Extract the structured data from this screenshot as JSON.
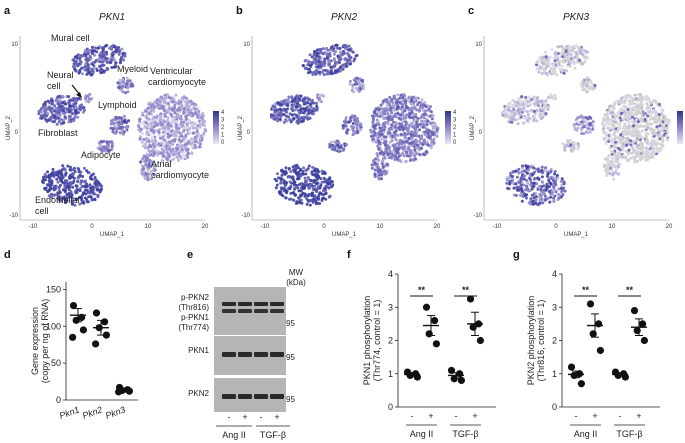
{
  "panels": {
    "a": {
      "label": "a",
      "title": "PKN1",
      "xlabel": "UMAP_1",
      "ylabel": "UMAP_2",
      "xticks": [
        "-10",
        "0",
        "10",
        "20"
      ],
      "yticks": [
        "10",
        "0",
        "-10"
      ],
      "legend_ticks": [
        "4",
        "3",
        "2",
        "1",
        "0"
      ],
      "annotations": {
        "mural": "Mural cell",
        "neural1": "Neural",
        "neural2": "cell",
        "myeloid": "Myeloid",
        "ventricular1": "Ventricular",
        "ventricular2": "cardiomyocyte",
        "lymphoid": "Lymphoid",
        "fibroblast": "Fibroblast",
        "adipocyte": "Adipocyte",
        "atrial1": "Atrial",
        "atrial2": "cardiomyocyte",
        "endothelial1": "Endothelial",
        "endothelial2": "cell"
      }
    },
    "b": {
      "label": "b",
      "title": "PKN2",
      "xlabel": "UMAP_1",
      "ylabel": "UMAP_2",
      "xticks": [
        "-10",
        "0",
        "10",
        "20"
      ],
      "yticks": [
        "10",
        "0",
        "-10"
      ],
      "legend_ticks": [
        "4",
        "3",
        "2",
        "1",
        "0"
      ]
    },
    "c": {
      "label": "c",
      "title": "PKN3",
      "xlabel": "UMAP_1",
      "ylabel": "UMAP_2",
      "xticks": [
        "-10",
        "0",
        "10",
        "20"
      ],
      "yticks": [
        "10",
        "0",
        "-10"
      ],
      "legend_ticks": [
        "4",
        "3",
        "2",
        "1",
        "0"
      ]
    },
    "d": {
      "label": "d"
    },
    "e": {
      "label": "e",
      "mw_label1": "MW",
      "mw_label2": "(kDa)",
      "rows": [
        {
          "name": "p-PKN2",
          "sub": "(Thr816)"
        },
        {
          "name": "p-PKN1",
          "sub": "(Thr774)"
        },
        {
          "name": "PKN1"
        },
        {
          "name": "PKN2"
        }
      ],
      "mw": [
        "95",
        "95",
        "95"
      ],
      "lanes": [
        "-",
        "+",
        "-",
        "+"
      ],
      "groups": [
        "Ang II",
        "TGF-β"
      ]
    },
    "f": {
      "label": "f",
      "sig": [
        "**",
        "**"
      ]
    },
    "g": {
      "label": "g",
      "sig": [
        "**",
        "**"
      ]
    }
  },
  "chart_data": [
    {
      "type": "scatter",
      "id": "d",
      "title": "",
      "ylabel": "Gene expression",
      "ylabel2": "(copy per ng of RNA)",
      "categories": [
        "Pkn1",
        "Pkn2",
        "Pkn3"
      ],
      "yticks": [
        "0",
        "50",
        "100",
        "150"
      ],
      "ylim": [
        0,
        160
      ],
      "points": [
        [
          128,
          112,
          108,
          95,
          85
        ],
        [
          118,
          106,
          98,
          88,
          76
        ],
        [
          17,
          14,
          13,
          12,
          11
        ]
      ],
      "mean": [
        115,
        98,
        13
      ],
      "sem": [
        9,
        10,
        1.5
      ]
    },
    {
      "type": "scatter",
      "id": "f",
      "ylabel": "PKN1 phosphorylation",
      "ylabel2": "(Thr774, control = 1)",
      "categories": [
        "-",
        "+",
        "-",
        "+"
      ],
      "groups": [
        "Ang II",
        "TGF-β"
      ],
      "yticks": [
        "0",
        "1",
        "2",
        "3",
        "4"
      ],
      "ylim": [
        0,
        4
      ],
      "points": [
        [
          1.05,
          1.0,
          0.95,
          0.9
        ],
        [
          3.0,
          2.6,
          2.2,
          1.9
        ],
        [
          1.1,
          1.0,
          0.85,
          0.8
        ],
        [
          3.25,
          2.5,
          2.4,
          2.0
        ]
      ],
      "mean": [
        0.98,
        2.45,
        0.95,
        2.5
      ],
      "sem": [
        0.05,
        0.3,
        0.08,
        0.35
      ]
    },
    {
      "type": "scatter",
      "id": "g",
      "ylabel": "PKN2 phosphorylation",
      "ylabel2": "(Thr816, control = 1)",
      "categories": [
        "-",
        "+",
        "-",
        "+"
      ],
      "groups": [
        "Ang II",
        "TGF-β"
      ],
      "yticks": [
        "0",
        "1",
        "2",
        "3",
        "4"
      ],
      "ylim": [
        0,
        4
      ],
      "points": [
        [
          1.2,
          1.0,
          0.95,
          0.7
        ],
        [
          3.1,
          2.5,
          2.2,
          1.7
        ],
        [
          1.05,
          1.0,
          0.95,
          0.9
        ],
        [
          2.9,
          2.5,
          2.3,
          2.0
        ]
      ],
      "mean": [
        0.98,
        2.45,
        0.98,
        2.4
      ],
      "sem": [
        0.1,
        0.35,
        0.03,
        0.25
      ]
    }
  ],
  "colors": {
    "expr_high": "#3b3f9e",
    "expr_mid": "#8d86c9",
    "expr_low": "#cfc9e6",
    "grey": "#d6d6d6",
    "gray_dark": "#b9b9b9"
  }
}
